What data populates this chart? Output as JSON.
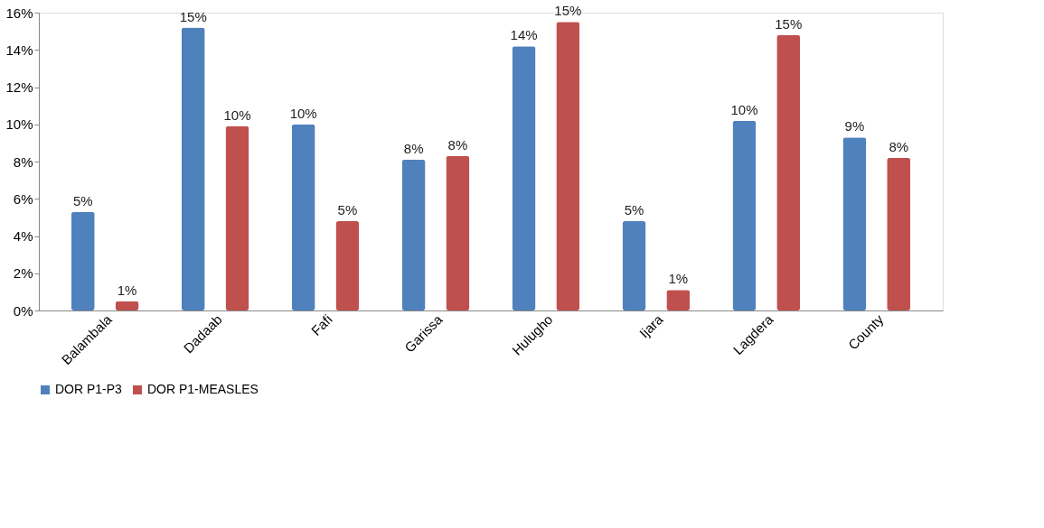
{
  "chart_data": {
    "type": "bar",
    "categories": [
      "Balambala",
      "Dadaab",
      "Fafi",
      "Garissa",
      "Hulugho",
      "Ijara",
      "Lagdera",
      "County"
    ],
    "series": [
      {
        "name": "DOR P1-P3",
        "color": "#4f81bd",
        "values": [
          5.3,
          15.2,
          10.0,
          8.1,
          14.2,
          4.8,
          10.2,
          9.3
        ],
        "value_labels": [
          "5%",
          "15%",
          "10%",
          "8%",
          "14%",
          "5%",
          "10%",
          "9%"
        ]
      },
      {
        "name": "DOR P1-MEASLES",
        "color": "#c0504d",
        "values": [
          0.5,
          9.9,
          4.8,
          8.3,
          15.5,
          1.1,
          14.8,
          8.2
        ],
        "value_labels": [
          "1%",
          "10%",
          "5%",
          "8%",
          "15%",
          "1%",
          "15%",
          "8%"
        ]
      }
    ],
    "ylim": [
      0,
      16
    ],
    "yticks": [
      {
        "value": 0,
        "label": "0%"
      },
      {
        "value": 2,
        "label": "2%"
      },
      {
        "value": 4,
        "label": "4%"
      },
      {
        "value": 6,
        "label": "6%"
      },
      {
        "value": 8,
        "label": "8%"
      },
      {
        "value": 10,
        "label": "10%"
      },
      {
        "value": 12,
        "label": "12%"
      },
      {
        "value": 14,
        "label": "14%"
      },
      {
        "value": 16,
        "label": "16%"
      }
    ],
    "grid": false,
    "legend": "bottom"
  }
}
